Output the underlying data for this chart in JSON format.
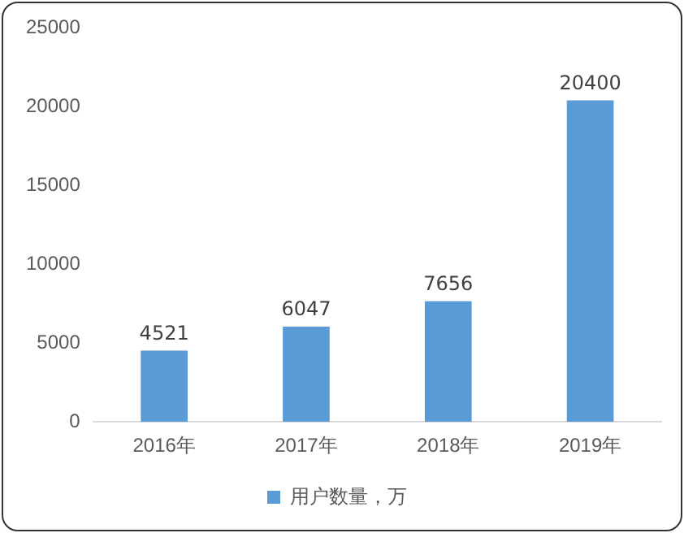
{
  "chart_data": {
    "type": "bar",
    "categories": [
      "2016年",
      "2017年",
      "2018年",
      "2019年"
    ],
    "series": [
      {
        "name": "用户数量，万",
        "color": "#5b9bd5",
        "values": [
          4521,
          6047,
          7656,
          20400
        ]
      }
    ],
    "ylim": [
      0,
      25000
    ],
    "yticks": [
      0,
      5000,
      10000,
      15000,
      20000,
      25000
    ],
    "grid": false,
    "legend": "bottom",
    "data_labels": true
  }
}
